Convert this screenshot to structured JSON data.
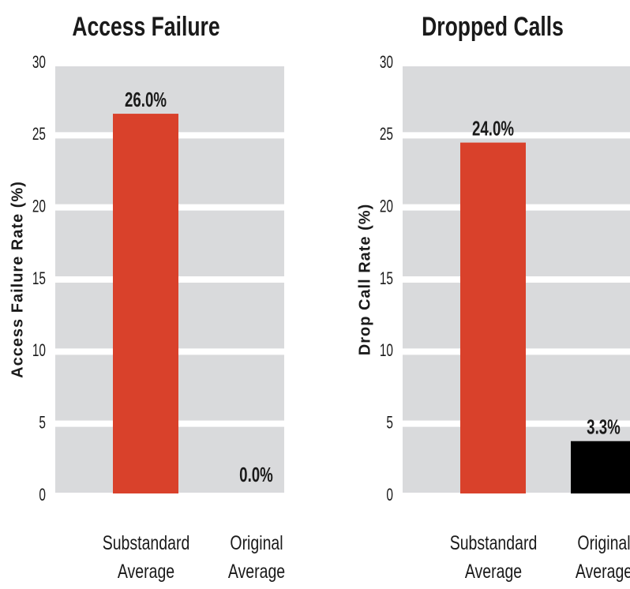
{
  "chart_data": [
    {
      "type": "bar",
      "title": "Access Failure",
      "y_label": "Access Failure Rate (%)",
      "categories": [
        "Substandard\nAverage",
        "Original\nAverage"
      ],
      "values": [
        26.0,
        0.0
      ],
      "value_labels": [
        "26.0%",
        "0.0%"
      ],
      "colors": [
        "#d9412b",
        "#000000"
      ],
      "ylim": [
        0,
        30
      ],
      "yticks": [
        0,
        5,
        10,
        15,
        20,
        25,
        30
      ],
      "grid": true
    },
    {
      "type": "bar",
      "title": "Dropped Calls",
      "y_label": "Drop Call Rate (%)",
      "categories": [
        "Substandard\nAverage",
        "Original\nAverage"
      ],
      "values": [
        24.0,
        3.3
      ],
      "value_labels": [
        "24.0%",
        "3.3%"
      ],
      "colors": [
        "#d9412b",
        "#000000"
      ],
      "ylim": [
        0,
        30
      ],
      "yticks": [
        0,
        5,
        10,
        15,
        20,
        25,
        30
      ],
      "grid": true
    }
  ]
}
